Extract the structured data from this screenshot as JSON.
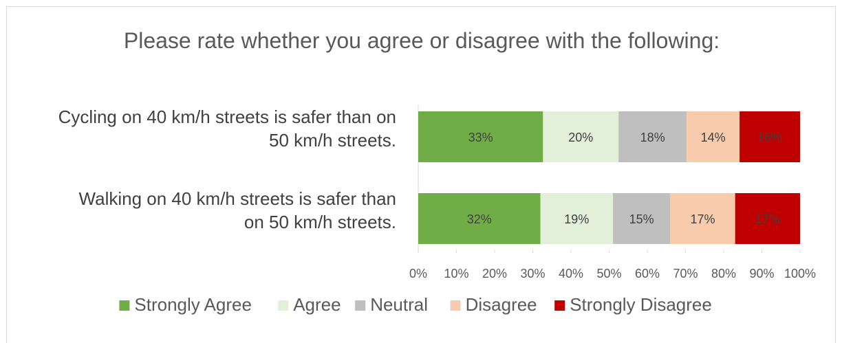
{
  "chart_data": {
    "type": "bar",
    "orientation": "horizontal",
    "stacked": "percent",
    "title": "Please rate whether you agree or disagree with the following:",
    "categories": [
      [
        "Cycling on 40 km/h streets is safer than on",
        "50 km/h streets."
      ],
      [
        "Walking on 40 km/h streets is safer than",
        "on 50 km/h streets."
      ]
    ],
    "series": [
      {
        "name": "Strongly Agree",
        "color": "#70ad47",
        "values": [
          33,
          32
        ],
        "labels": [
          "33%",
          "32%"
        ]
      },
      {
        "name": "Agree",
        "color": "#e2f0d9",
        "values": [
          20,
          19
        ],
        "labels": [
          "20%",
          "19%"
        ]
      },
      {
        "name": "Neutral",
        "color": "#bfbfbf",
        "values": [
          18,
          15
        ],
        "labels": [
          "18%",
          "15%"
        ]
      },
      {
        "name": "Disagree",
        "color": "#f8cbad",
        "values": [
          14,
          17
        ],
        "labels": [
          "14%",
          "17%"
        ]
      },
      {
        "name": "Strongly Disagree",
        "color": "#c00000",
        "values": [
          16,
          17
        ],
        "labels": [
          "16%",
          "17%"
        ]
      }
    ],
    "xlim": [
      0,
      100
    ],
    "xticks": [
      "0%",
      "10%",
      "20%",
      "30%",
      "40%",
      "50%",
      "60%",
      "70%",
      "80%",
      "90%",
      "100%"
    ],
    "grid": false,
    "legend_position": "bottom"
  }
}
